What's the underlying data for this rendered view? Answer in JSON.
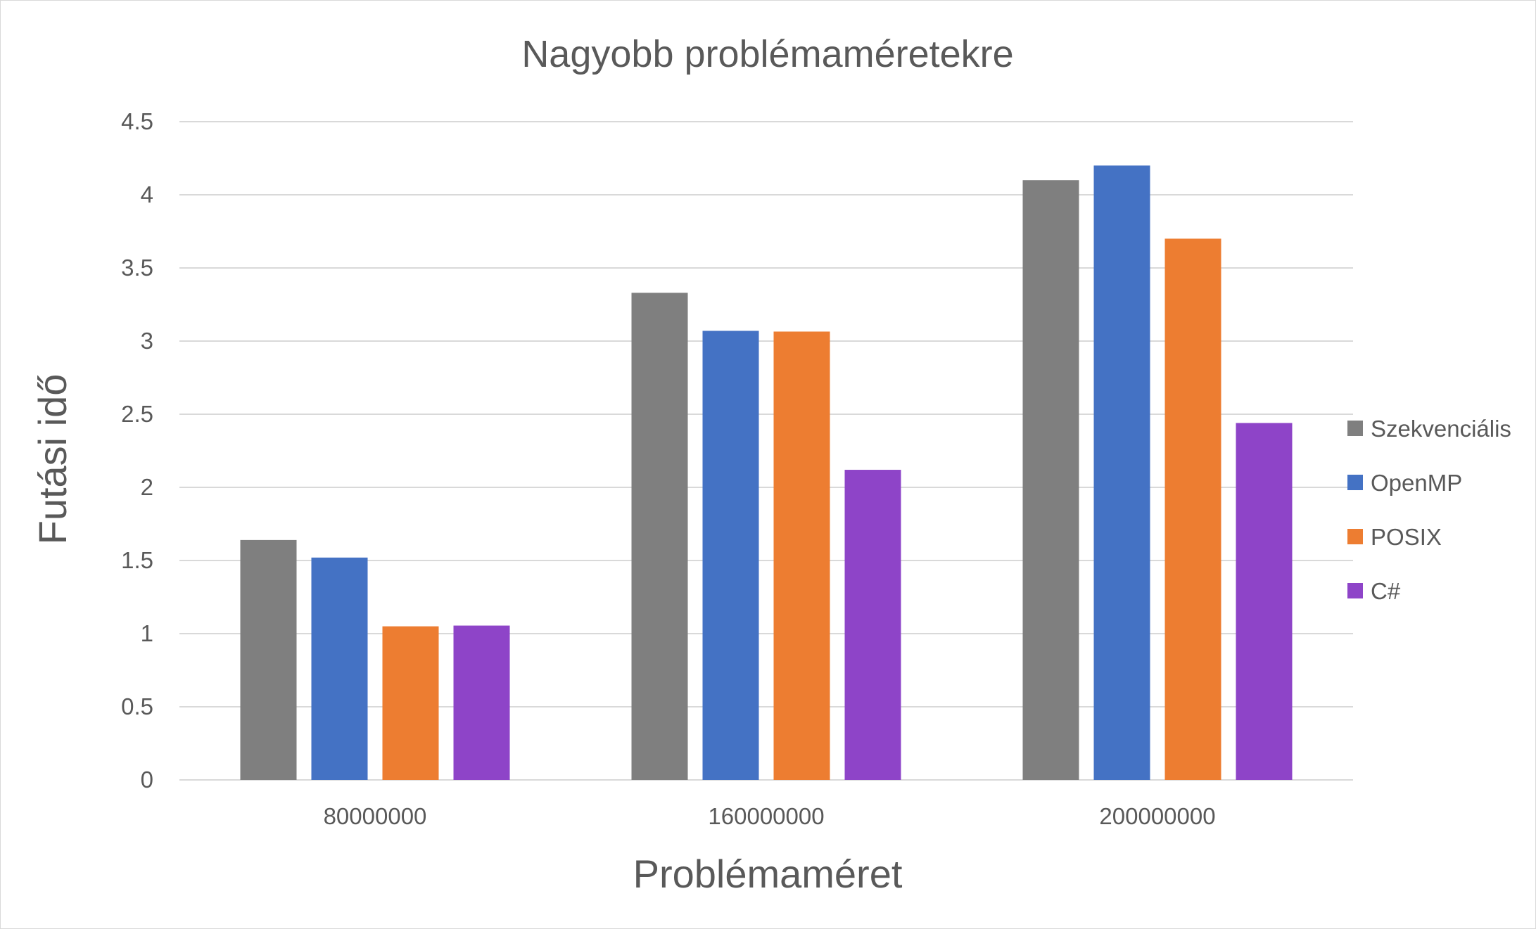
{
  "chart_data": {
    "type": "bar",
    "title": "Nagyobb problémaméretekre",
    "xlabel": "Problémaméret",
    "ylabel": "Futási idő",
    "categories": [
      "80000000",
      "160000000",
      "200000000"
    ],
    "series": [
      {
        "name": "Szekvenciális",
        "color": "#7f7f7f",
        "values": [
          1.64,
          3.33,
          4.1
        ]
      },
      {
        "name": "OpenMP",
        "color": "#4472c4",
        "values": [
          1.52,
          3.07,
          4.2
        ]
      },
      {
        "name": "POSIX",
        "color": "#ed7d31",
        "values": [
          1.05,
          3.065,
          3.7
        ]
      },
      {
        "name": "C#",
        "color": "#8e44c8",
        "values": [
          1.055,
          2.12,
          2.44
        ]
      }
    ],
    "ylim": [
      0,
      4.5
    ],
    "yticks": [
      "0",
      "0.5",
      "1",
      "1.5",
      "2",
      "2.5",
      "3",
      "3.5",
      "4",
      "4.5"
    ],
    "grid": true,
    "legend_position": "right"
  }
}
